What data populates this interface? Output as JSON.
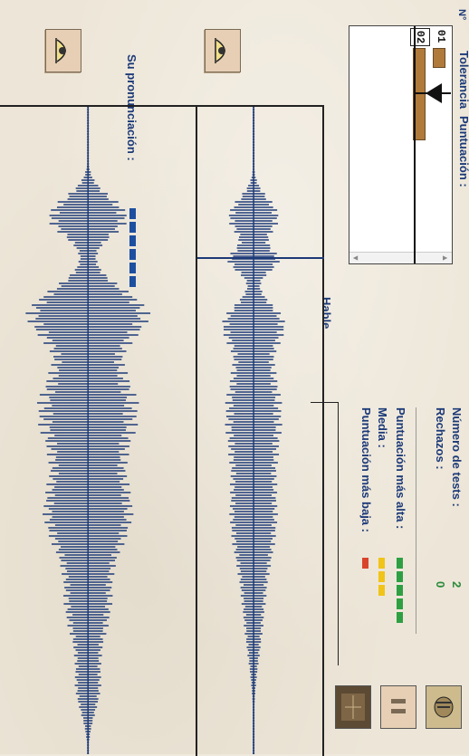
{
  "labels": {
    "tolerance": "Tolerancia",
    "number": "N°",
    "score": "Puntuación :",
    "speak": "Hable...",
    "your_pronunciation": "Su pronunciación :",
    "tests_label": "Número de tests :",
    "tests_value": "2",
    "rejections_label": "Rechazos :",
    "rejections_value": "0",
    "highest_label": "Puntuación más alta :",
    "mean_label": "Media :",
    "lowest_label": "Puntuación más baja :"
  },
  "rows": [
    {
      "num": "01",
      "score": 1
    },
    {
      "num": "02",
      "score": 5
    }
  ],
  "tolerance_level": 1,
  "pronunciation_level": 6,
  "stats_levels": {
    "highest": 5,
    "mean": 3,
    "lowest": 1
  },
  "colors": {
    "wave": "#1c3a78",
    "score_bar": "#b07a3a",
    "pronunciation": "#1d4fa0",
    "high": "#2ea043",
    "mean": "#f0c419",
    "low": "#d8452c"
  },
  "icons": {
    "listen_reference": "ear-icon",
    "listen_recording": "ear-icon",
    "waveform": "waveform-icon",
    "pause": "pause-icon",
    "speak": "speaker-head-icon"
  }
}
